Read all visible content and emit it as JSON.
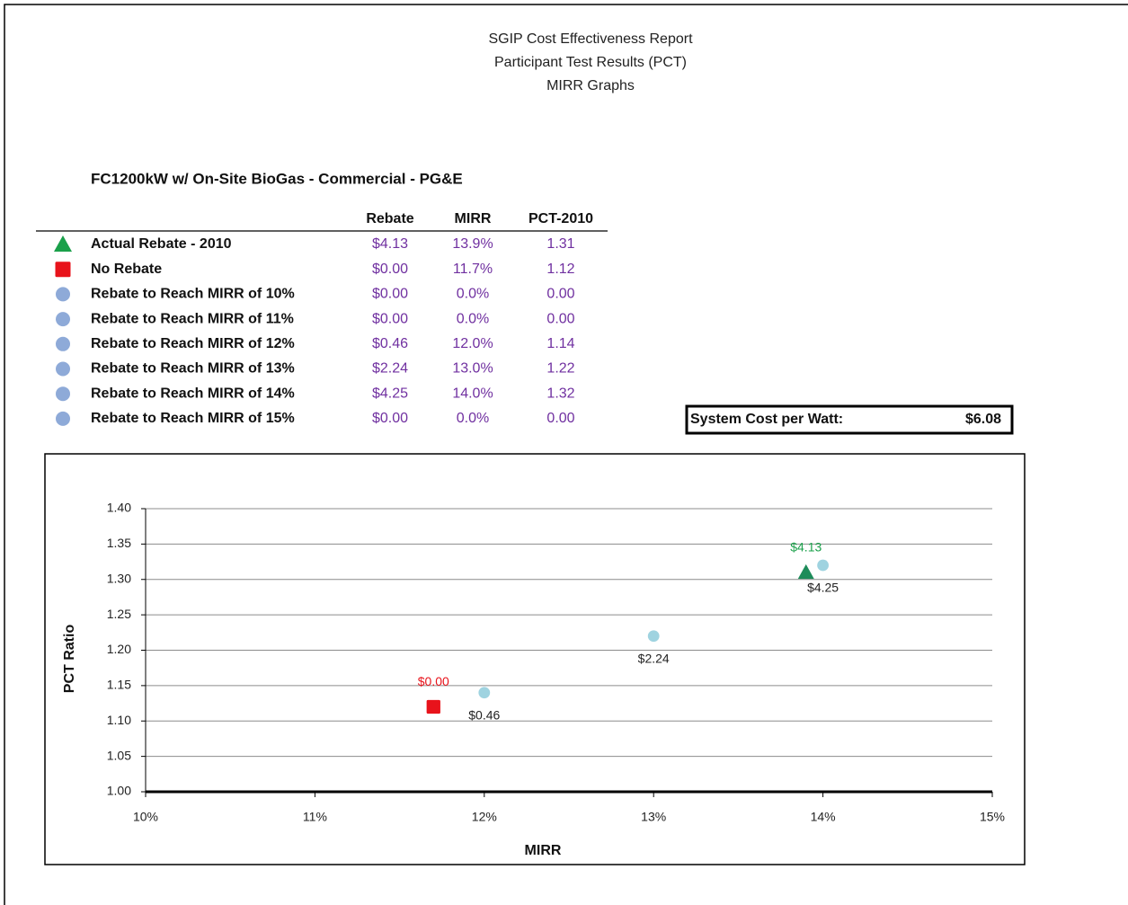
{
  "header": {
    "lines": [
      "SGIP Cost Effectiveness Report",
      "Participant Test Results (PCT)",
      "MIRR Graphs"
    ]
  },
  "subtitle": "FC1200kW w/ On-Site BioGas - Commercial - PG&E",
  "table": {
    "columns": [
      "Rebate",
      "MIRR",
      "PCT-2010"
    ],
    "rows": [
      {
        "marker": "triangle",
        "color": "#1aa04a",
        "label": "Actual Rebate - 2010",
        "cells": [
          "$4.13",
          "13.9%",
          "1.31"
        ]
      },
      {
        "marker": "square",
        "color": "#e8131b",
        "label": "No Rebate",
        "cells": [
          "$0.00",
          "11.7%",
          "1.12"
        ]
      },
      {
        "marker": "circle",
        "color": "#8eaad8",
        "label": "Rebate to Reach MIRR of 10%",
        "cells": [
          "$0.00",
          "0.0%",
          "0.00"
        ]
      },
      {
        "marker": "circle",
        "color": "#8eaad8",
        "label": "Rebate to Reach MIRR of 11%",
        "cells": [
          "$0.00",
          "0.0%",
          "0.00"
        ]
      },
      {
        "marker": "circle",
        "color": "#8eaad8",
        "label": "Rebate to Reach MIRR of 12%",
        "cells": [
          "$0.46",
          "12.0%",
          "1.14"
        ]
      },
      {
        "marker": "circle",
        "color": "#8eaad8",
        "label": "Rebate to Reach MIRR of 13%",
        "cells": [
          "$2.24",
          "13.0%",
          "1.22"
        ]
      },
      {
        "marker": "circle",
        "color": "#8eaad8",
        "label": "Rebate to Reach MIRR of 14%",
        "cells": [
          "$4.25",
          "14.0%",
          "1.32"
        ]
      },
      {
        "marker": "circle",
        "color": "#8eaad8",
        "label": "Rebate to Reach MIRR of 15%",
        "cells": [
          "$0.00",
          "0.0%",
          "0.00"
        ]
      }
    ]
  },
  "system_cost": {
    "label": "System Cost per Watt:",
    "value": "$6.08"
  },
  "chart_data": {
    "type": "scatter",
    "x_label": "MIRR",
    "y_label": "PCT Ratio",
    "xlim": [
      10,
      15
    ],
    "xticks": [
      {
        "value": 10,
        "label": "10%"
      },
      {
        "value": 11,
        "label": "11%"
      },
      {
        "value": 12,
        "label": "12%"
      },
      {
        "value": 13,
        "label": "13%"
      },
      {
        "value": 14,
        "label": "14%"
      },
      {
        "value": 15,
        "label": "15%"
      }
    ],
    "ylim": [
      1,
      1.4
    ],
    "yticks": [
      {
        "value": 1,
        "label": "1.00"
      },
      1.05,
      {
        "value": 1.1,
        "label": "1.10"
      },
      1.15,
      {
        "value": 1.2,
        "label": "1.20"
      },
      1.25,
      {
        "value": 1.3,
        "label": "1.30"
      },
      1.35,
      {
        "value": 1.4,
        "label": "1.40"
      }
    ],
    "grid": true,
    "series": [
      {
        "marker": "circle",
        "color": "#9fd3e0",
        "label_color": "#222222",
        "x": [
          12.0,
          13.0,
          14.0
        ],
        "values": [
          1.14,
          1.22,
          1.32
        ],
        "labels": [
          "$0.46",
          "$2.24",
          "$4.25"
        ]
      },
      {
        "marker": "square",
        "color": "#e8131b",
        "label_color": "#e8131b",
        "x": [
          11.7
        ],
        "values": [
          1.12
        ],
        "labels": [
          "$0.00"
        ]
      },
      {
        "marker": "triangle",
        "color": "#1e8c5a",
        "label_color": "#1aa04a",
        "x": [
          13.9
        ],
        "values": [
          1.31
        ],
        "labels": [
          "$4.13"
        ]
      }
    ]
  }
}
